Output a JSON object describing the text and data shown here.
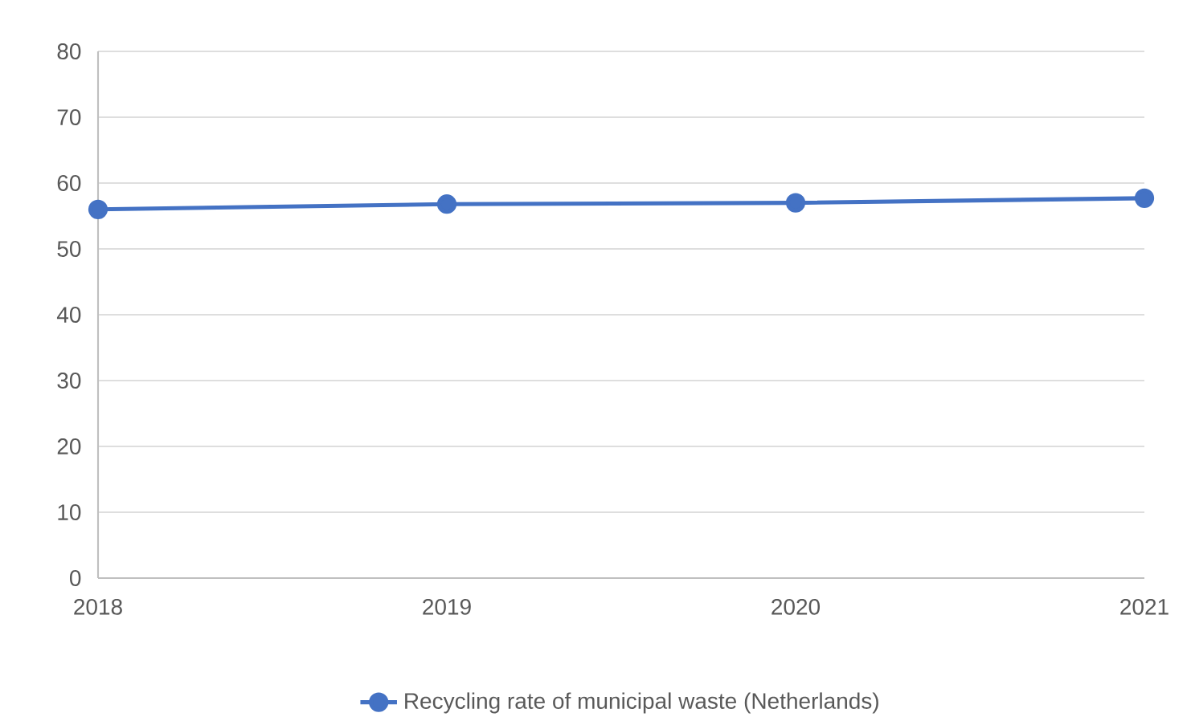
{
  "chart_data": {
    "type": "line",
    "x": [
      2018,
      2019,
      2020,
      2021
    ],
    "xlim": [
      2018,
      2021
    ],
    "xticks": [
      2018,
      2019,
      2020,
      2021
    ],
    "ylim": [
      0,
      80
    ],
    "yticks": [
      0,
      10,
      20,
      30,
      40,
      50,
      60,
      70,
      80
    ],
    "grid": "y",
    "legend": "bottom",
    "marker": "circle",
    "line_style": "solid",
    "series": [
      {
        "name": "Recycling rate of municipal waste (Netherlands)",
        "color": "#4472c4",
        "values": [
          56.0,
          56.8,
          57.0,
          57.7
        ]
      }
    ]
  }
}
